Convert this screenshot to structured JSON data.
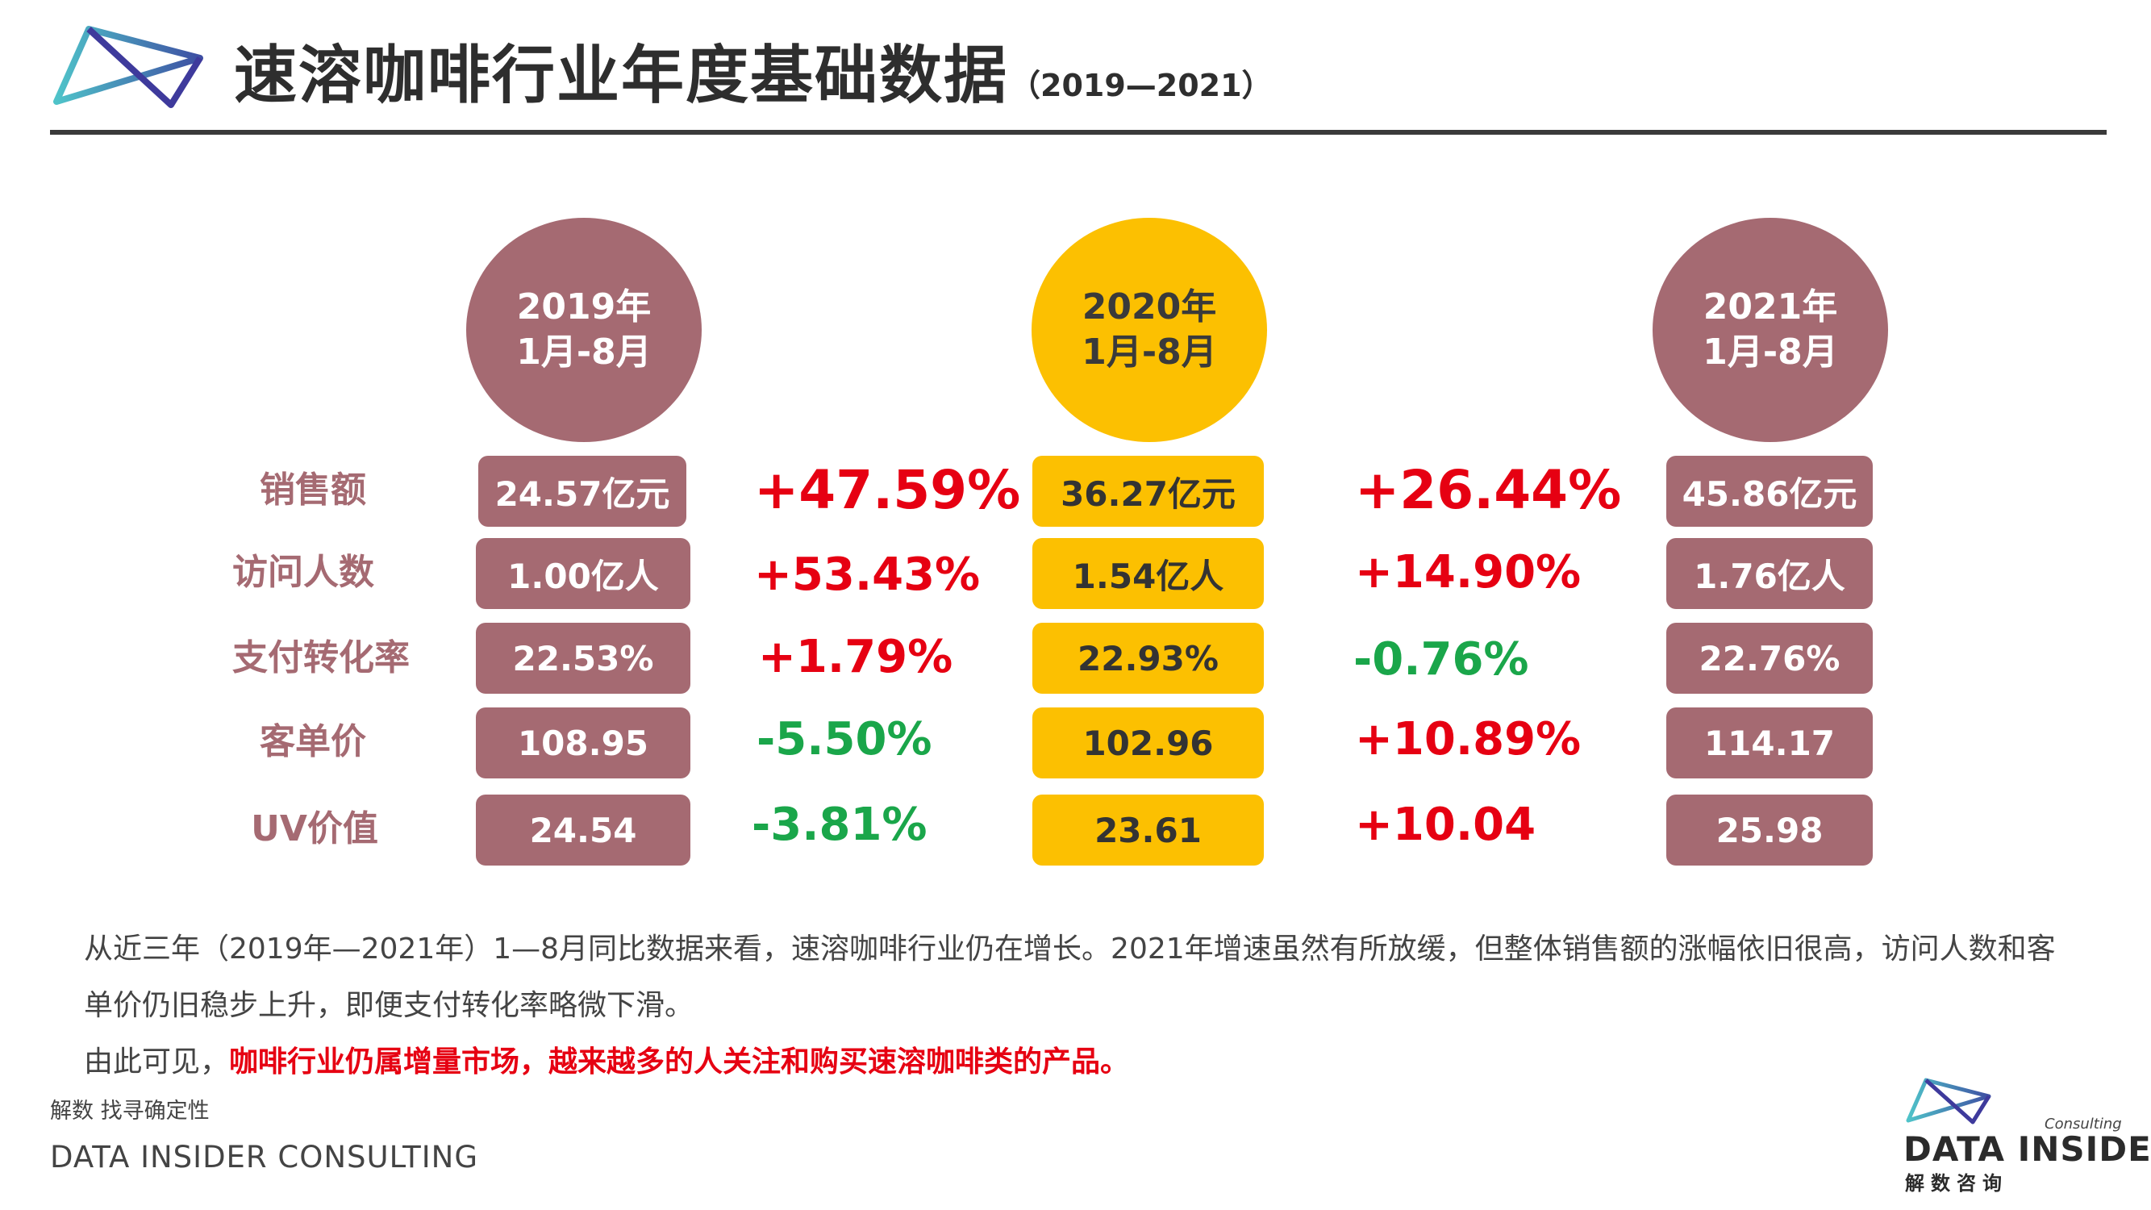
{
  "header": {
    "title": "速溶咖啡行业年度基础数据",
    "subtitle": "（2019—2021）",
    "logo_icon": "triangle-bowtie-logo"
  },
  "years": [
    {
      "line1": "2019年",
      "line2": "1月-8月",
      "color": "#a56a72"
    },
    {
      "line1": "2020年",
      "line2": "1月-8月",
      "color": "#fcc001"
    },
    {
      "line1": "2021年",
      "line2": "1月-8月",
      "color": "#a56a72"
    }
  ],
  "metrics": [
    {
      "label": "销售额",
      "v2019": "24.57亿元",
      "c1": "+47.59%",
      "v2020": "36.27亿元",
      "c2": "+26.44%",
      "v2021": "45.86亿元"
    },
    {
      "label": "访问人数",
      "v2019": "1.00亿人",
      "c1": "+53.43%",
      "v2020": "1.54亿人",
      "c2": "+14.90%",
      "v2021": "1.76亿人"
    },
    {
      "label": "支付转化率",
      "v2019": "22.53%",
      "c1": "+1.79%",
      "v2020": "22.93%",
      "c2": "-0.76%",
      "v2021": "22.76%"
    },
    {
      "label": "客单价",
      "v2019": "108.95",
      "c1": "-5.50%",
      "v2020": "102.96",
      "c2": "+10.89%",
      "v2021": "114.17"
    },
    {
      "label": "UV价值",
      "v2019": "24.54",
      "c1": "-3.81%",
      "v2020": "23.61",
      "c2": "+10.04",
      "v2021": "25.98"
    }
  ],
  "colors": {
    "mauve": "#a56a72",
    "gold": "#fcc001",
    "increase": "#e60012",
    "decrease": "#1aa64a"
  },
  "summary": {
    "paragraph": "从近三年（2019年—2021年）1—8月同比数据来看，速溶咖啡行业仍在增长。2021年增速虽然有所放缓，但整体销售额的涨幅依旧很高，访问人数和客单价仍旧稳步上升，即便支付转化率略微下滑。",
    "conclusion_prefix": "由此可见，",
    "conclusion_emphasis": "咖啡行业仍属增量市场，越来越多的人关注和购买速溶咖啡类的产品。"
  },
  "footer": {
    "tagline": "解数 找寻确定性",
    "company": "DATA INSIDER CONSULTING"
  },
  "brand": {
    "small": "Consulting",
    "name": "DATA INSIDER",
    "cn": "解数咨询",
    "icon": "triangle-bowtie-logo"
  }
}
